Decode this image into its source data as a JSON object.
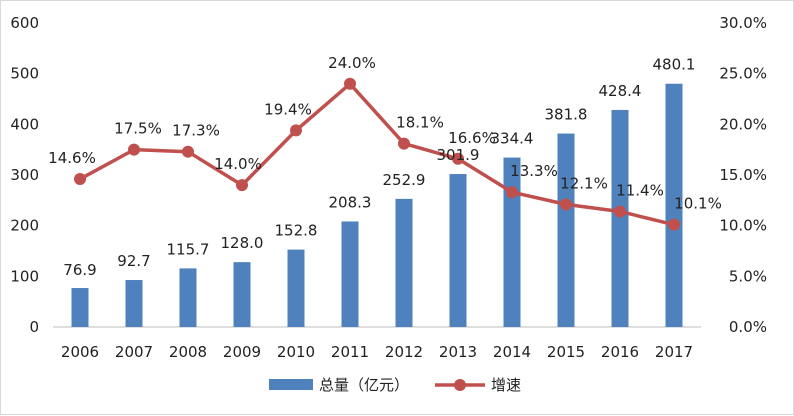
{
  "chart_data": {
    "type": "bar+line",
    "title": "",
    "categories": [
      "2006",
      "2007",
      "2008",
      "2009",
      "2010",
      "2011",
      "2012",
      "2013",
      "2014",
      "2015",
      "2016",
      "2017"
    ],
    "series": [
      {
        "name": "总量（亿元）",
        "type": "bar",
        "axis": "left",
        "color": "#4F81BD",
        "values": [
          76.9,
          92.7,
          115.7,
          128.0,
          152.8,
          208.3,
          252.9,
          301.9,
          334.4,
          381.8,
          428.4,
          480.1
        ],
        "labels": [
          "76.9",
          "92.7",
          "115.7",
          "128.0",
          "152.8",
          "208.3",
          "252.9",
          "301.9",
          "334.4",
          "381.8",
          "428.4",
          "480.1"
        ]
      },
      {
        "name": "增速",
        "type": "line",
        "axis": "right",
        "color": "#C0504D",
        "values": [
          14.6,
          17.5,
          17.3,
          14.0,
          19.4,
          24.0,
          18.1,
          16.6,
          13.3,
          12.1,
          11.4,
          10.1
        ],
        "labels": [
          "14.6%",
          "17.5%",
          "17.3%",
          "14.0%",
          "19.4%",
          "24.0%",
          "18.1%",
          "16.6%",
          "13.3%",
          "12.1%",
          "11.4%",
          "10.1%"
        ]
      }
    ],
    "left_axis": {
      "ylim": [
        0,
        600
      ],
      "ticks": [
        "0",
        "100",
        "200",
        "300",
        "400",
        "500",
        "600"
      ]
    },
    "right_axis": {
      "ylim": [
        0,
        30
      ],
      "ticks": [
        "0.0%",
        "5.0%",
        "10.0%",
        "15.0%",
        "20.0%",
        "25.0%",
        "30.0%"
      ]
    },
    "grid": false,
    "legend_position": "bottom"
  }
}
